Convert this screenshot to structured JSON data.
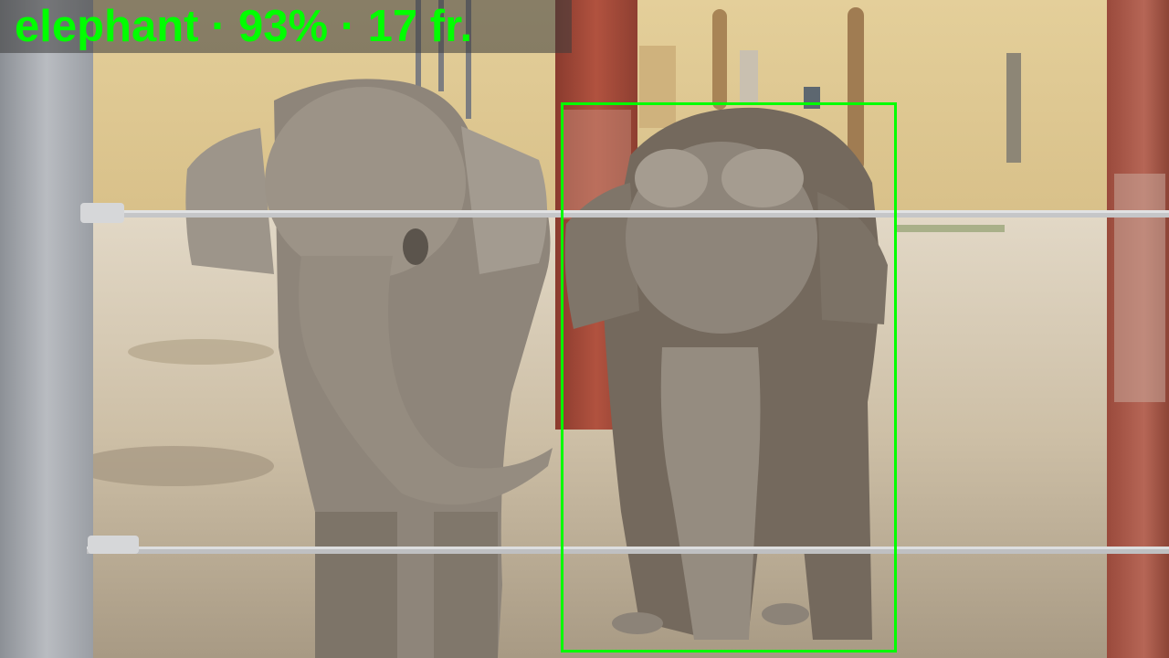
{
  "detection": {
    "class_label": "elephant",
    "confidence_percent": 93,
    "frame_count_label": "17 fr.",
    "label_text": "elephant · 93% · 17 fr.",
    "box_color": "#00ff00",
    "text_color": "#00ff00"
  }
}
